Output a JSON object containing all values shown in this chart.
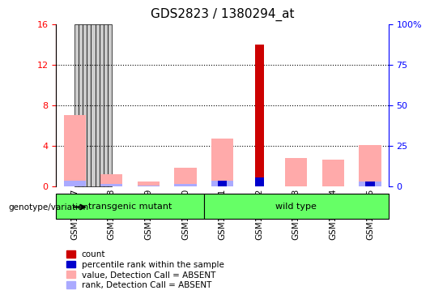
{
  "title": "GDS2823 / 1380294_at",
  "samples": [
    "GSM181537",
    "GSM181538",
    "GSM181539",
    "GSM181540",
    "GSM181541",
    "GSM181542",
    "GSM181543",
    "GSM181544",
    "GSM181545"
  ],
  "count_values": [
    0,
    0,
    0,
    0,
    0,
    14.0,
    0,
    0,
    0
  ],
  "percentile_rank": [
    0,
    0,
    0,
    0,
    3.2,
    5.3,
    0,
    0,
    3.0
  ],
  "absent_value": [
    7.0,
    1.2,
    0.5,
    1.8,
    4.7,
    0,
    2.8,
    2.6,
    4.1
  ],
  "absent_rank": [
    3.5,
    1.2,
    0.5,
    1.6,
    3.2,
    0,
    0,
    0,
    3.0
  ],
  "group_labels": [
    "transgenic mutant",
    "wild type"
  ],
  "group_color": "#66ff66",
  "bar_color_count": "#cc0000",
  "bar_color_rank": "#0000cc",
  "bar_color_absent_value": "#ffaaaa",
  "bar_color_absent_rank": "#aaaaff",
  "ylim_left": [
    0,
    16
  ],
  "ylim_right": [
    0,
    100
  ],
  "yticks_left": [
    0,
    4,
    8,
    12,
    16
  ],
  "yticks_right": [
    0,
    25,
    50,
    75,
    100
  ],
  "yticklabels_right": [
    "0",
    "25",
    "50",
    "75",
    "100%"
  ],
  "xlabel_area_color": "#cccccc",
  "legend_items": [
    {
      "color": "#cc0000",
      "label": "count"
    },
    {
      "color": "#0000cc",
      "label": "percentile rank within the sample"
    },
    {
      "color": "#ffaaaa",
      "label": "value, Detection Call = ABSENT"
    },
    {
      "color": "#aaaaff",
      "label": "rank, Detection Call = ABSENT"
    }
  ]
}
